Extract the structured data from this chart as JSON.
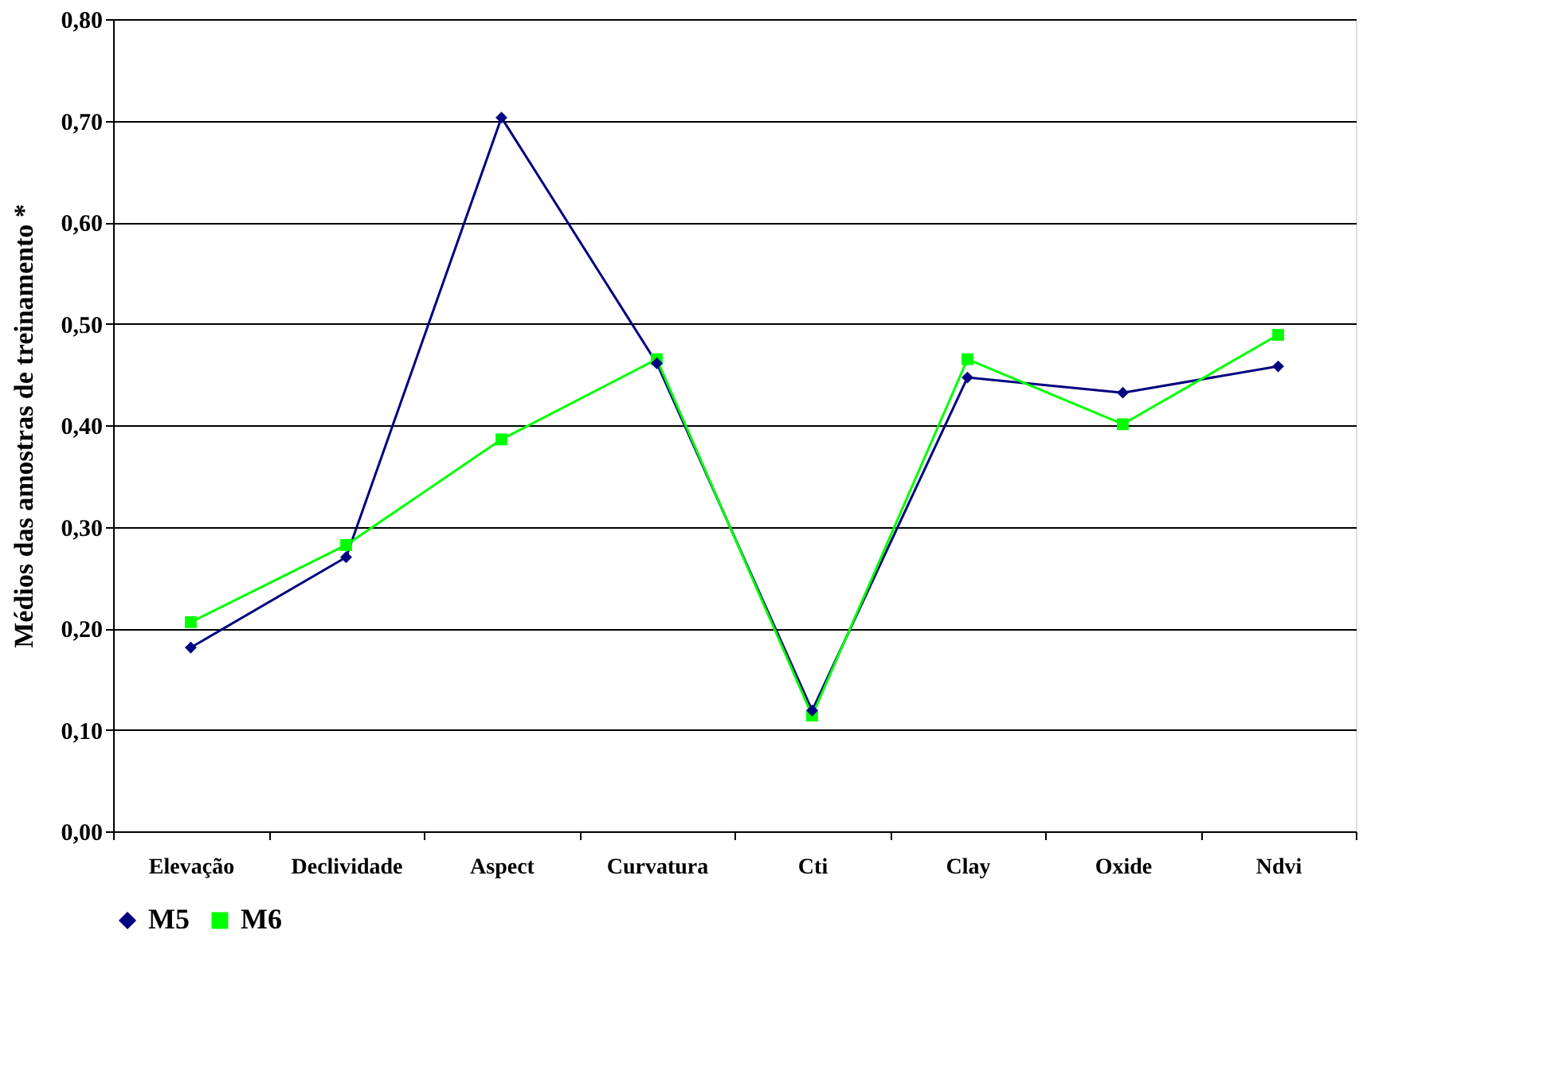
{
  "chart_data": {
    "type": "line",
    "ylabel": "Médios das amostras de treinamento *",
    "categories": [
      "Elevação",
      "Declividade",
      "Aspect",
      "Curvatura",
      "Cti",
      "Clay",
      "Oxide",
      "Ndvi"
    ],
    "series": [
      {
        "name": "M5",
        "color": "#000080",
        "marker": "diamond",
        "values": [
          0.181,
          0.27,
          0.703,
          0.461,
          0.119,
          0.447,
          0.432,
          0.458
        ]
      },
      {
        "name": "M6",
        "color": "#00ff00",
        "marker": "square",
        "values": [
          0.206,
          0.282,
          0.386,
          0.465,
          0.114,
          0.465,
          0.401,
          0.489
        ]
      }
    ],
    "ylim": [
      0,
      0.8
    ],
    "yticks": [
      {
        "value": 0,
        "label": "0,00"
      },
      {
        "value": 0.1,
        "label": "0,10"
      },
      {
        "value": 0.2,
        "label": "0,20"
      },
      {
        "value": 0.3,
        "label": "0,30"
      },
      {
        "value": 0.4,
        "label": "0,40"
      },
      {
        "value": 0.5,
        "label": "0,50"
      },
      {
        "value": 0.6,
        "label": "0,60"
      },
      {
        "value": 0.7,
        "label": "0,70"
      },
      {
        "value": 0.8,
        "label": "0,80"
      }
    ],
    "grid": "y",
    "legend": "bottom",
    "line_style": "solid"
  }
}
